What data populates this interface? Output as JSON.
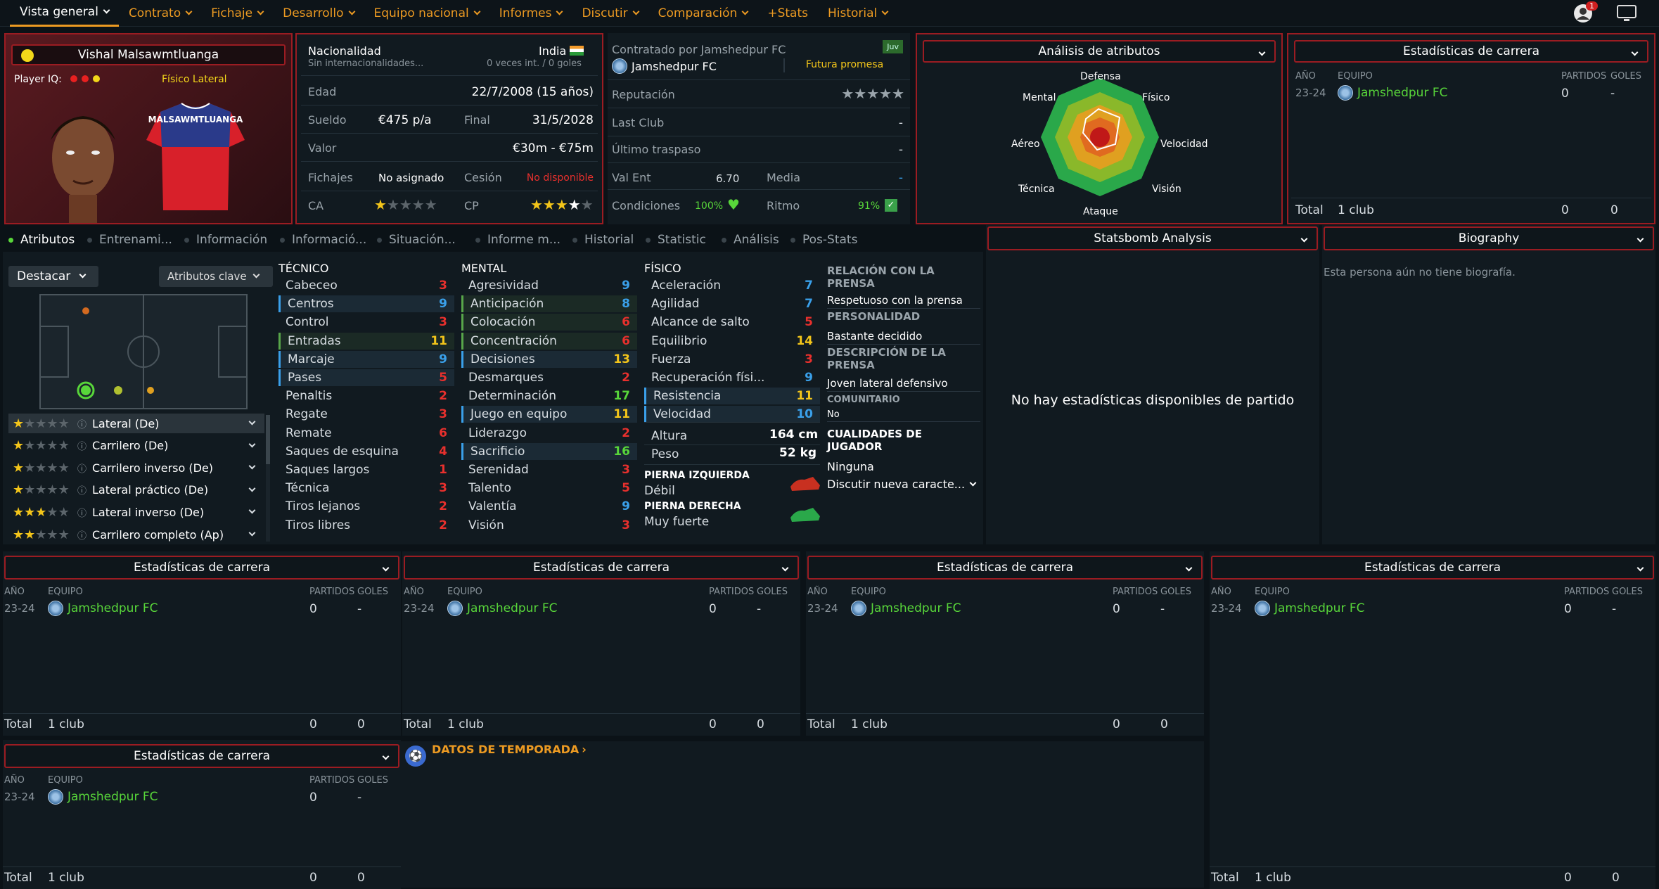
{
  "nav": {
    "items": [
      "Vista general",
      "Contrato",
      "Fichaje",
      "Desarrollo",
      "Equipo nacional",
      "Informes",
      "Discutir",
      "Comparación",
      "+Stats",
      "Historial"
    ],
    "badge": "1"
  },
  "profile": {
    "name": "Vishal Malsawmtluanga",
    "iq_label": "Player IQ:",
    "tags": "Físico Lateral",
    "shirt_name": "MALSAWMTLUANGA"
  },
  "info": {
    "nat_label": "Nacionalidad",
    "nat_value": "India",
    "intl": "Sin internacionalidades...",
    "intl_stats": "0 veces int. / 0 goles",
    "edad_label": "Edad",
    "edad": "22/7/2008 (15 años)",
    "sueldo_label": "Sueldo",
    "sueldo": "€475 p/a",
    "final_label": "Final",
    "final": "31/5/2028",
    "valor_label": "Valor",
    "valor": "€30m - €75m",
    "fichajes_label": "Fichajes",
    "fichajes": "No asignado",
    "cesion_label": "Cesión",
    "cesion": "No disponible",
    "ca_label": "CA",
    "cp_label": "CP",
    "ca_stars": 1,
    "cp_stars": 3.5
  },
  "contract": {
    "by": "Contratado por Jamshedpur FC",
    "badge": "Juv",
    "club": "Jamshedpur FC",
    "status": "Futura promesa",
    "rep_label": "Reputación",
    "last_label": "Last Club",
    "last": "-",
    "ult_label": "Último traspaso",
    "ult": "-",
    "valent_label": "Val Ent",
    "valent": "6.70",
    "media_label": "Media",
    "media": "-",
    "cond_label": "Condiciones",
    "cond": "100%",
    "ritmo_label": "Ritmo",
    "ritmo": "91%"
  },
  "radar": {
    "title": "Análisis de atributos",
    "labels": [
      "Defensa",
      "Físico",
      "Velocidad",
      "Visión",
      "Ataque",
      "Técnica",
      "Aéreo",
      "Mental"
    ]
  },
  "career": {
    "title": "Estadísticas de carrera",
    "h_year": "AÑO",
    "h_team": "EQUIPO",
    "h_matches": "PARTIDOS",
    "h_goals": "GOLES",
    "year": "23-24",
    "team": "Jamshedpur FC",
    "matches": "0",
    "goals": "-",
    "total_label": "Total",
    "total_clubs": "1 club",
    "total_matches": "0",
    "total_goals": "0"
  },
  "tabs": [
    "Atributos",
    "Entrenami...",
    "Información",
    "Informació...",
    "Situación...",
    "Informe m...",
    "Historial",
    "Statistic",
    "Análisis",
    "Pos-Stats"
  ],
  "left": {
    "highlight": "Destacar",
    "keyattr": "Atributos clave"
  },
  "roles": [
    {
      "name": "Lateral (De)",
      "stars": 1
    },
    {
      "name": "Carrilero (De)",
      "stars": 1
    },
    {
      "name": "Carrilero inverso (De)",
      "stars": 1
    },
    {
      "name": "Lateral práctico (De)",
      "stars": 1
    },
    {
      "name": "Lateral inverso (De)",
      "stars": 3
    },
    {
      "name": "Carrilero completo (Ap)",
      "stars": 1.5
    }
  ],
  "tecnico": {
    "title": "TÉCNICO",
    "items": [
      [
        "Cabeceo",
        "3"
      ],
      [
        "Centros",
        "9"
      ],
      [
        "Control",
        "3"
      ],
      [
        "Entradas",
        "11"
      ],
      [
        "Marcaje",
        "9"
      ],
      [
        "Pases",
        "5"
      ],
      [
        "Penaltis",
        "2"
      ],
      [
        "Regate",
        "3"
      ],
      [
        "Remate",
        "6"
      ],
      [
        "Saques de esquina",
        "4"
      ],
      [
        "Saques largos",
        "1"
      ],
      [
        "Técnica",
        "3"
      ],
      [
        "Tiros lejanos",
        "2"
      ],
      [
        "Tiros libres",
        "2"
      ]
    ]
  },
  "mental": {
    "title": "MENTAL",
    "items": [
      [
        "Agresividad",
        "9"
      ],
      [
        "Anticipación",
        "8"
      ],
      [
        "Colocación",
        "6"
      ],
      [
        "Concentración",
        "6"
      ],
      [
        "Decisiones",
        "13"
      ],
      [
        "Desmarques",
        "2"
      ],
      [
        "Determinación",
        "17"
      ],
      [
        "Juego en equipo",
        "11"
      ],
      [
        "Liderazgo",
        "2"
      ],
      [
        "Sacrificio",
        "16"
      ],
      [
        "Serenidad",
        "3"
      ],
      [
        "Talento",
        "5"
      ],
      [
        "Valentía",
        "9"
      ],
      [
        "Visión",
        "3"
      ]
    ]
  },
  "fisico": {
    "title": "FÍSICO",
    "items": [
      [
        "Aceleración",
        "7"
      ],
      [
        "Agilidad",
        "7"
      ],
      [
        "Alcance de salto",
        "5"
      ],
      [
        "Equilibrio",
        "14"
      ],
      [
        "Fuerza",
        "3"
      ],
      [
        "Recuperación físi...",
        "9"
      ],
      [
        "Resistencia",
        "11"
      ],
      [
        "Velocidad",
        "10"
      ]
    ],
    "altura_label": "Altura",
    "altura": "164 cm",
    "peso_label": "Peso",
    "peso": "52 kg",
    "izq_label": "PIERNA IZQUIERDA",
    "izq": "Débil",
    "der_label": "PIERNA DERECHA",
    "der": "Muy fuerte"
  },
  "press": {
    "rel_title": "RELACIÓN CON LA PRENSA",
    "rel": "Respetuoso con la prensa",
    "pers_title": "PERSONALIDAD",
    "pers": "Bastante decidido",
    "desc_title": "DESCRIPCIÓN DE LA PRENSA",
    "desc": "Joven lateral defensivo",
    "com_title": "COMUNITARIO",
    "com": "No",
    "cual_title": "CUALIDADES DE JUGADOR",
    "cual": "Ninguna",
    "discutir": "Discutir nueva caracte..."
  },
  "statsbomb": {
    "title": "Statsbomb Analysis",
    "empty": "No hay estadísticas disponibles de partido"
  },
  "bio": {
    "title": "Biography",
    "text": "Esta persona aún no tiene biografía."
  },
  "season": {
    "title": "DATOS DE TEMPORADA"
  }
}
